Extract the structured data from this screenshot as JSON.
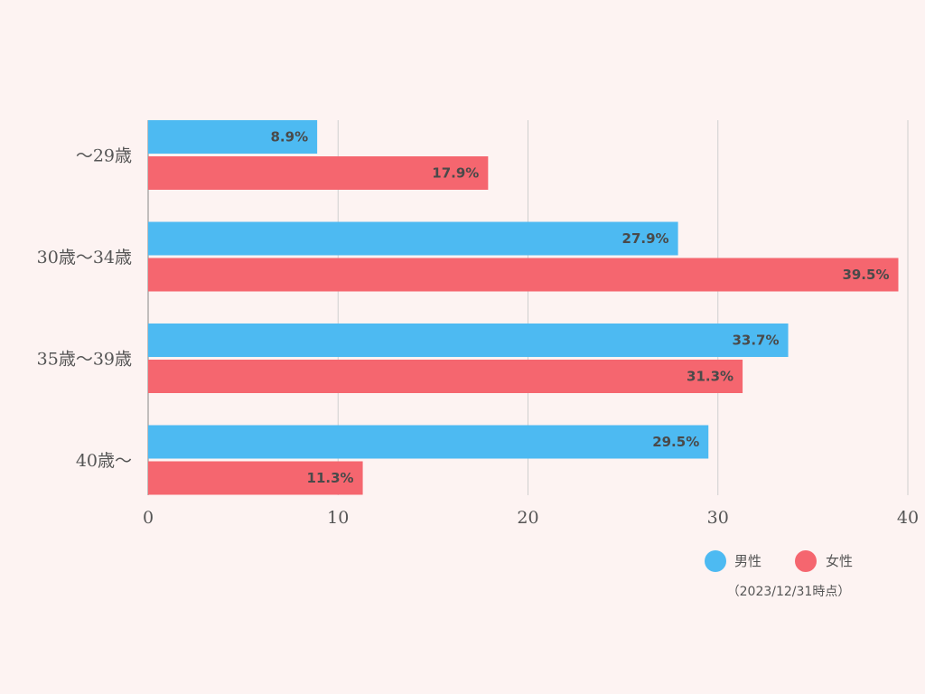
{
  "chart_data": {
    "type": "bar",
    "orientation": "horizontal",
    "categories": [
      "～29歳",
      "30歳～34歳",
      "35歳～39歳",
      "40歳～"
    ],
    "series": [
      {
        "name": "男性",
        "color": "#4dbaf2",
        "values": [
          8.9,
          27.9,
          33.7,
          29.5
        ]
      },
      {
        "name": "女性",
        "color": "#f5666f",
        "values": [
          17.9,
          39.5,
          31.3,
          11.3
        ]
      }
    ],
    "value_suffix": "%",
    "xlim": [
      0,
      40
    ],
    "xticks": [
      0,
      10,
      20,
      30,
      40
    ],
    "grid": true,
    "legend_position": "bottom-right",
    "note": "（2023/12/31時点）"
  }
}
